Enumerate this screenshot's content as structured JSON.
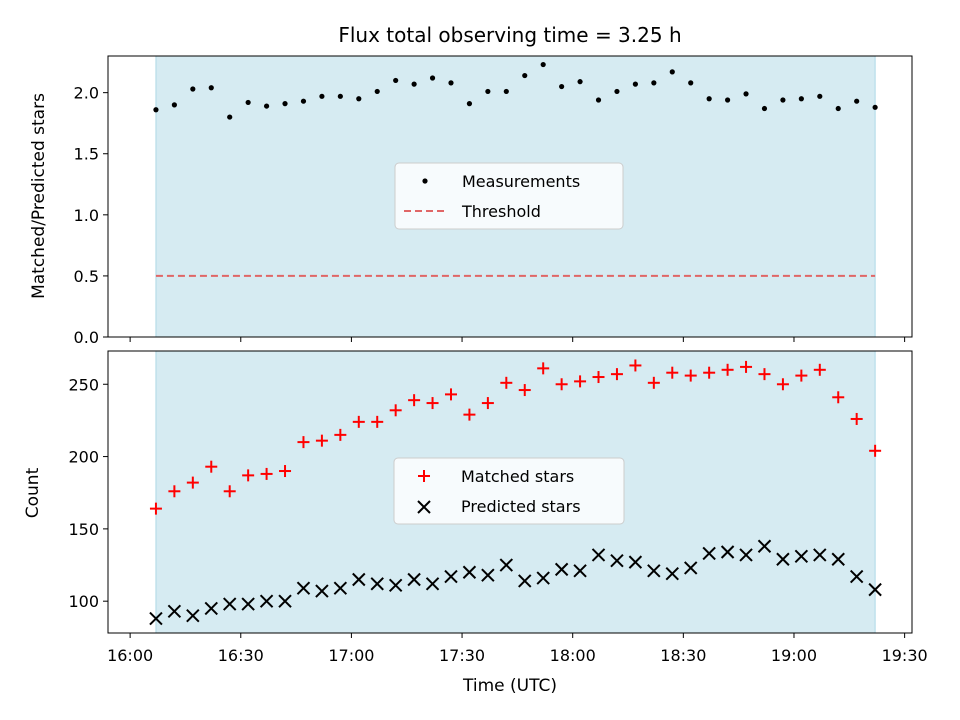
{
  "chart_data": [
    {
      "type": "scatter",
      "title": "Flux total observing time = 3.25 h",
      "xlabel": "",
      "ylabel": "Matched/Predicted stars",
      "xlim_minutes": [
        954,
        1172
      ],
      "ylim": [
        0,
        2.3
      ],
      "yticks": [
        "0.0",
        "0.5",
        "1.0",
        "1.5",
        "2.0"
      ],
      "shaded_region": {
        "x_start": "16:07",
        "x_end": "19:22",
        "color": "#add8e6"
      },
      "threshold": {
        "value": 0.5,
        "color": "#e06666"
      },
      "legend": {
        "position": "center",
        "entries": [
          "Measurements",
          "Threshold"
        ]
      },
      "series": [
        {
          "name": "Measurements",
          "color": "#000000",
          "points": [
            [
              "16:07",
              1.86
            ],
            [
              "16:12",
              1.9
            ],
            [
              "16:17",
              2.03
            ],
            [
              "16:22",
              2.04
            ],
            [
              "16:27",
              1.8
            ],
            [
              "16:32",
              1.92
            ],
            [
              "16:37",
              1.89
            ],
            [
              "16:42",
              1.91
            ],
            [
              "16:47",
              1.93
            ],
            [
              "16:52",
              1.97
            ],
            [
              "16:57",
              1.97
            ],
            [
              "17:02",
              1.95
            ],
            [
              "17:07",
              2.01
            ],
            [
              "17:12",
              2.1
            ],
            [
              "17:17",
              2.07
            ],
            [
              "17:22",
              2.12
            ],
            [
              "17:27",
              2.08
            ],
            [
              "17:32",
              1.91
            ],
            [
              "17:37",
              2.01
            ],
            [
              "17:42",
              2.01
            ],
            [
              "17:47",
              2.14
            ],
            [
              "17:52",
              2.23
            ],
            [
              "17:57",
              2.05
            ],
            [
              "18:02",
              2.09
            ],
            [
              "18:07",
              1.94
            ],
            [
              "18:12",
              2.01
            ],
            [
              "18:17",
              2.07
            ],
            [
              "18:22",
              2.08
            ],
            [
              "18:27",
              2.17
            ],
            [
              "18:32",
              2.08
            ],
            [
              "18:37",
              1.95
            ],
            [
              "18:42",
              1.94
            ],
            [
              "18:47",
              1.99
            ],
            [
              "18:52",
              1.87
            ],
            [
              "18:57",
              1.94
            ],
            [
              "19:02",
              1.95
            ],
            [
              "19:07",
              1.97
            ],
            [
              "19:12",
              1.87
            ],
            [
              "19:17",
              1.93
            ],
            [
              "19:22",
              1.88
            ]
          ]
        }
      ]
    },
    {
      "type": "scatter",
      "title": "",
      "xlabel": "Time (UTC)",
      "ylabel": "Count",
      "xlim_minutes": [
        954,
        1172
      ],
      "ylim": [
        78,
        273
      ],
      "yticks": [
        "100",
        "150",
        "200",
        "250"
      ],
      "xticks": [
        "16:00",
        "16:30",
        "17:00",
        "17:30",
        "18:00",
        "18:30",
        "19:00",
        "19:30"
      ],
      "shaded_region": {
        "x_start": "16:07",
        "x_end": "19:22",
        "color": "#add8e6"
      },
      "legend": {
        "position": "center",
        "entries": [
          "Matched stars",
          "Predicted stars"
        ]
      },
      "series": [
        {
          "name": "Matched stars",
          "marker": "+",
          "color": "#ff0000",
          "points": [
            [
              "16:07",
              164
            ],
            [
              "16:12",
              176
            ],
            [
              "16:17",
              182
            ],
            [
              "16:22",
              193
            ],
            [
              "16:27",
              176
            ],
            [
              "16:32",
              187
            ],
            [
              "16:37",
              188
            ],
            [
              "16:42",
              190
            ],
            [
              "16:47",
              210
            ],
            [
              "16:52",
              211
            ],
            [
              "16:57",
              215
            ],
            [
              "17:02",
              224
            ],
            [
              "17:07",
              224
            ],
            [
              "17:12",
              232
            ],
            [
              "17:17",
              239
            ],
            [
              "17:22",
              237
            ],
            [
              "17:27",
              243
            ],
            [
              "17:32",
              229
            ],
            [
              "17:37",
              237
            ],
            [
              "17:42",
              251
            ],
            [
              "17:47",
              246
            ],
            [
              "17:52",
              261
            ],
            [
              "17:57",
              250
            ],
            [
              "18:02",
              252
            ],
            [
              "18:07",
              255
            ],
            [
              "18:12",
              257
            ],
            [
              "18:17",
              263
            ],
            [
              "18:22",
              251
            ],
            [
              "18:27",
              258
            ],
            [
              "18:32",
              256
            ],
            [
              "18:37",
              258
            ],
            [
              "18:42",
              260
            ],
            [
              "18:47",
              262
            ],
            [
              "18:52",
              257
            ],
            [
              "18:57",
              250
            ],
            [
              "19:02",
              256
            ],
            [
              "19:07",
              260
            ],
            [
              "19:12",
              241
            ],
            [
              "19:17",
              226
            ],
            [
              "19:22",
              204
            ]
          ]
        },
        {
          "name": "Predicted stars",
          "marker": "x",
          "color": "#000000",
          "points": [
            [
              "16:07",
              88
            ],
            [
              "16:12",
              93
            ],
            [
              "16:17",
              90
            ],
            [
              "16:22",
              95
            ],
            [
              "16:27",
              98
            ],
            [
              "16:32",
              98
            ],
            [
              "16:37",
              100
            ],
            [
              "16:42",
              100
            ],
            [
              "16:47",
              109
            ],
            [
              "16:52",
              107
            ],
            [
              "16:57",
              109
            ],
            [
              "17:02",
              115
            ],
            [
              "17:07",
              112
            ],
            [
              "17:12",
              111
            ],
            [
              "17:17",
              115
            ],
            [
              "17:22",
              112
            ],
            [
              "17:27",
              117
            ],
            [
              "17:32",
              120
            ],
            [
              "17:37",
              118
            ],
            [
              "17:42",
              125
            ],
            [
              "17:47",
              114
            ],
            [
              "17:52",
              116
            ],
            [
              "17:57",
              122
            ],
            [
              "18:02",
              121
            ],
            [
              "18:07",
              132
            ],
            [
              "18:12",
              128
            ],
            [
              "18:17",
              127
            ],
            [
              "18:22",
              121
            ],
            [
              "18:27",
              119
            ],
            [
              "18:32",
              123
            ],
            [
              "18:37",
              133
            ],
            [
              "18:42",
              134
            ],
            [
              "18:47",
              132
            ],
            [
              "18:52",
              138
            ],
            [
              "18:57",
              129
            ],
            [
              "19:02",
              131
            ],
            [
              "19:07",
              132
            ],
            [
              "19:12",
              129
            ],
            [
              "19:17",
              117
            ],
            [
              "19:22",
              108
            ]
          ]
        }
      ]
    }
  ]
}
